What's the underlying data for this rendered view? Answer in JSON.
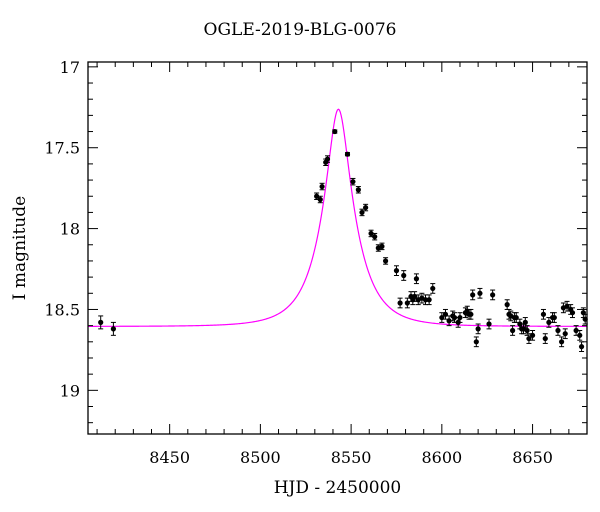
{
  "chart_data": {
    "type": "scatter",
    "title": "OGLE-2019-BLG-0076",
    "xlabel": "HJD - 2450000",
    "ylabel": "I magnitude",
    "xlim": [
      8405,
      8680
    ],
    "ylim": [
      19.27,
      16.97
    ],
    "y_inverted": true,
    "xticks": [
      8450,
      8500,
      8550,
      8600,
      8650
    ],
    "yticks": [
      17,
      17.5,
      18,
      18.5,
      19
    ],
    "ytick_labels": [
      "17",
      "17.5",
      "18",
      "18.5",
      "19"
    ],
    "grid": false,
    "colors": {
      "data": "#000000",
      "model": "#ff00ff",
      "axes": "#000000"
    },
    "model": {
      "name": "",
      "baseline_mag": 18.605,
      "t0": 8543,
      "u0": 0.3,
      "tE": 18
    },
    "series": [
      {
        "points": [
          [
            8412,
            18.58,
            0.04
          ],
          [
            8419,
            18.62,
            0.04
          ],
          [
            8531,
            17.8,
            0.02
          ],
          [
            8533,
            17.82,
            0.02
          ],
          [
            8534,
            17.74,
            0.02
          ],
          [
            8536,
            17.59,
            0.02
          ],
          [
            8537,
            17.57,
            0.02
          ],
          [
            8541,
            17.4,
            0.01
          ],
          [
            8548,
            17.54,
            0.01
          ],
          [
            8551,
            17.71,
            0.02
          ],
          [
            8554,
            17.76,
            0.02
          ],
          [
            8556,
            17.9,
            0.02
          ],
          [
            8558,
            17.87,
            0.02
          ],
          [
            8561,
            18.03,
            0.02
          ],
          [
            8563,
            18.05,
            0.02
          ],
          [
            8565,
            18.12,
            0.02
          ],
          [
            8567,
            18.11,
            0.02
          ],
          [
            8569,
            18.2,
            0.02
          ],
          [
            8575,
            18.26,
            0.03
          ],
          [
            8577,
            18.46,
            0.03
          ],
          [
            8579,
            18.29,
            0.03
          ],
          [
            8581,
            18.46,
            0.03
          ],
          [
            8583,
            18.42,
            0.03
          ],
          [
            8584,
            18.44,
            0.03
          ],
          [
            8585,
            18.42,
            0.03
          ],
          [
            8586,
            18.31,
            0.03
          ],
          [
            8587,
            18.44,
            0.03
          ],
          [
            8589,
            18.43,
            0.03
          ],
          [
            8591,
            18.44,
            0.03
          ],
          [
            8593,
            18.44,
            0.03
          ],
          [
            8595,
            18.37,
            0.03
          ],
          [
            8600,
            18.55,
            0.03
          ],
          [
            8602,
            18.53,
            0.03
          ],
          [
            8604,
            18.57,
            0.03
          ],
          [
            8606,
            18.54,
            0.03
          ],
          [
            8607,
            18.55,
            0.03
          ],
          [
            8609,
            18.58,
            0.03
          ],
          [
            8610,
            18.55,
            0.03
          ],
          [
            8613,
            18.52,
            0.03
          ],
          [
            8614,
            18.51,
            0.03
          ],
          [
            8615,
            18.53,
            0.03
          ],
          [
            8616,
            18.53,
            0.03
          ],
          [
            8617,
            18.41,
            0.03
          ],
          [
            8619,
            18.7,
            0.03
          ],
          [
            8620,
            18.62,
            0.03
          ],
          [
            8621,
            18.4,
            0.03
          ],
          [
            8626,
            18.59,
            0.03
          ],
          [
            8628,
            18.41,
            0.03
          ],
          [
            8636,
            18.47,
            0.03
          ],
          [
            8637,
            18.53,
            0.03
          ],
          [
            8638,
            18.54,
            0.03
          ],
          [
            8639,
            18.63,
            0.03
          ],
          [
            8640,
            18.55,
            0.03
          ],
          [
            8641,
            18.55,
            0.03
          ],
          [
            8643,
            18.59,
            0.03
          ],
          [
            8644,
            18.62,
            0.03
          ],
          [
            8645,
            18.62,
            0.03
          ],
          [
            8646,
            18.58,
            0.03
          ],
          [
            8647,
            18.63,
            0.03
          ],
          [
            8648,
            18.68,
            0.03
          ],
          [
            8650,
            18.66,
            0.03
          ],
          [
            8656,
            18.53,
            0.03
          ],
          [
            8657,
            18.68,
            0.03
          ],
          [
            8659,
            18.58,
            0.03
          ],
          [
            8661,
            18.55,
            0.03
          ],
          [
            8662,
            18.55,
            0.03
          ],
          [
            8664,
            18.63,
            0.03
          ],
          [
            8666,
            18.7,
            0.03
          ],
          [
            8667,
            18.49,
            0.03
          ],
          [
            8668,
            18.65,
            0.03
          ],
          [
            8669,
            18.48,
            0.03
          ],
          [
            8671,
            18.5,
            0.03
          ],
          [
            8672,
            18.52,
            0.03
          ],
          [
            8674,
            18.63,
            0.03
          ],
          [
            8676,
            18.66,
            0.03
          ],
          [
            8677,
            18.73,
            0.03
          ],
          [
            8678,
            18.52,
            0.03
          ],
          [
            8679,
            18.56,
            0.03
          ]
        ]
      }
    ]
  }
}
